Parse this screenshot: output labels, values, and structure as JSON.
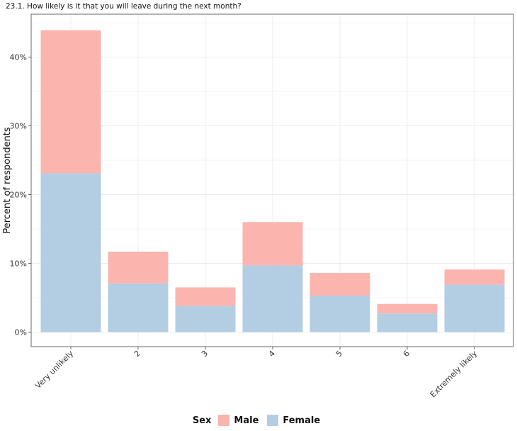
{
  "chart_data": {
    "type": "bar",
    "stacked": true,
    "title": "23.1. How likely is it that you will leave during the next month?",
    "ylabel": "Percent of respondents",
    "xlabel": "",
    "categories": [
      "Very unlikely",
      "2",
      "3",
      "4",
      "5",
      "6",
      "Extremely likely"
    ],
    "series": [
      {
        "name": "Female",
        "color": "#b3cde3",
        "values": [
          23.1,
          7.1,
          3.8,
          9.7,
          5.3,
          2.7,
          6.9
        ]
      },
      {
        "name": "Male",
        "color": "#fbb4ae",
        "values": [
          20.8,
          4.6,
          2.7,
          6.3,
          3.3,
          1.4,
          2.2
        ]
      }
    ],
    "ylim": [
      0,
      45
    ],
    "yticks": [
      0,
      10,
      20,
      30,
      40
    ],
    "ytick_labels": [
      "0%",
      "10%",
      "20%",
      "30%",
      "40%"
    ],
    "grid": true,
    "legend": {
      "title": "Sex",
      "position": "bottom",
      "entries": [
        {
          "label": "Male",
          "color": "#fbb4ae"
        },
        {
          "label": "Female",
          "color": "#b3cde3"
        }
      ]
    }
  }
}
